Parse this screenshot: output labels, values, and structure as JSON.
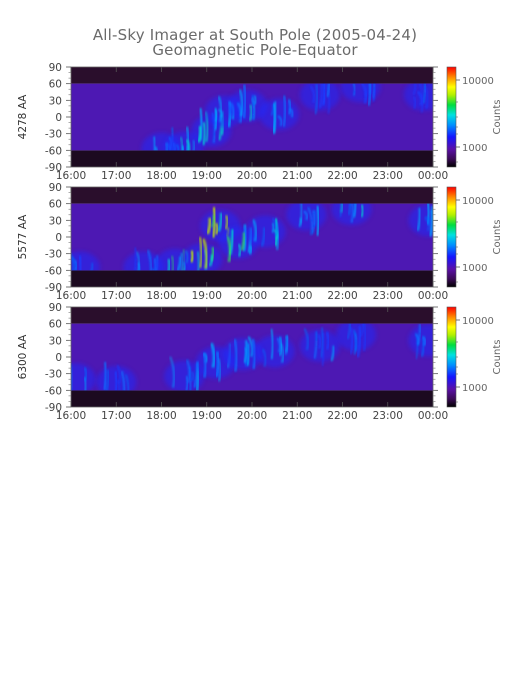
{
  "title": "All-Sky Imager at South Pole (2005-04-24)",
  "subtitle": "Geomagnetic Pole-Equator",
  "chart_data": [
    {
      "type": "heatmap",
      "channel": "4278 AA",
      "ylabel": "4278 AA",
      "x_ticks": [
        "16:00",
        "17:00",
        "18:00",
        "19:00",
        "20:00",
        "21:00",
        "22:00",
        "23:00",
        "00:00"
      ],
      "y_ticks": [
        90,
        60,
        30,
        0,
        -30,
        -60,
        -90
      ],
      "ylim": [
        -90,
        90
      ],
      "colorbar": {
        "label": "Counts",
        "ticks": [
          "10000",
          "1000"
        ],
        "scale": "log"
      },
      "data_band": [
        -60,
        60
      ],
      "activity": [
        {
          "t": 18.0,
          "lat": -57,
          "level": 0.45
        },
        {
          "t": 18.5,
          "lat": -55,
          "level": 0.5
        },
        {
          "t": 19.1,
          "lat": -25,
          "level": 0.55
        },
        {
          "t": 19.4,
          "lat": 10,
          "level": 0.5
        },
        {
          "t": 19.9,
          "lat": 20,
          "level": 0.5
        },
        {
          "t": 20.6,
          "lat": 5,
          "level": 0.4
        },
        {
          "t": 21.5,
          "lat": 40,
          "level": 0.35
        },
        {
          "t": 22.4,
          "lat": 55,
          "level": 0.35
        },
        {
          "t": 23.8,
          "lat": 40,
          "level": 0.35
        }
      ]
    },
    {
      "type": "heatmap",
      "channel": "5577 AA",
      "ylabel": "5577 AA",
      "x_ticks": [
        "16:00",
        "17:00",
        "18:00",
        "19:00",
        "20:00",
        "21:00",
        "22:00",
        "23:00",
        "00:00"
      ],
      "y_ticks": [
        90,
        60,
        30,
        0,
        -30,
        -60,
        -90
      ],
      "ylim": [
        -90,
        90
      ],
      "colorbar": {
        "label": "Counts",
        "ticks": [
          "10000",
          "1000"
        ],
        "scale": "log"
      },
      "data_band": [
        -60,
        60
      ],
      "activity": [
        {
          "t": 16.2,
          "lat": -55,
          "level": 0.4
        },
        {
          "t": 17.6,
          "lat": -55,
          "level": 0.45
        },
        {
          "t": 18.3,
          "lat": -50,
          "level": 0.65
        },
        {
          "t": 18.9,
          "lat": -40,
          "level": 0.7
        },
        {
          "t": 19.3,
          "lat": 20,
          "level": 0.75
        },
        {
          "t": 19.7,
          "lat": -10,
          "level": 0.6
        },
        {
          "t": 20.3,
          "lat": 10,
          "level": 0.55
        },
        {
          "t": 21.2,
          "lat": 40,
          "level": 0.5
        },
        {
          "t": 22.2,
          "lat": 50,
          "level": 0.5
        },
        {
          "t": 23.9,
          "lat": 30,
          "level": 0.5
        }
      ]
    },
    {
      "type": "heatmap",
      "channel": "6300 AA",
      "ylabel": "6300 AA",
      "x_ticks": [
        "16:00",
        "17:00",
        "18:00",
        "19:00",
        "20:00",
        "21:00",
        "22:00",
        "23:00",
        "00:00"
      ],
      "y_ticks": [
        90,
        60,
        30,
        0,
        -30,
        -60,
        -90
      ],
      "ylim": [
        -90,
        90
      ],
      "colorbar": {
        "label": "Counts",
        "ticks": [
          "10000",
          "1000"
        ],
        "scale": "log"
      },
      "data_band": [
        -60,
        60
      ],
      "activity": [
        {
          "t": 16.1,
          "lat": -40,
          "level": 0.5
        },
        {
          "t": 17.0,
          "lat": -45,
          "level": 0.4
        },
        {
          "t": 18.5,
          "lat": -35,
          "level": 0.45
        },
        {
          "t": 19.2,
          "lat": -10,
          "level": 0.45
        },
        {
          "t": 19.8,
          "lat": 5,
          "level": 0.5
        },
        {
          "t": 20.5,
          "lat": 10,
          "level": 0.45
        },
        {
          "t": 21.5,
          "lat": 20,
          "level": 0.4
        },
        {
          "t": 22.3,
          "lat": 40,
          "level": 0.4
        },
        {
          "t": 23.9,
          "lat": 30,
          "level": 0.4
        }
      ]
    }
  ]
}
